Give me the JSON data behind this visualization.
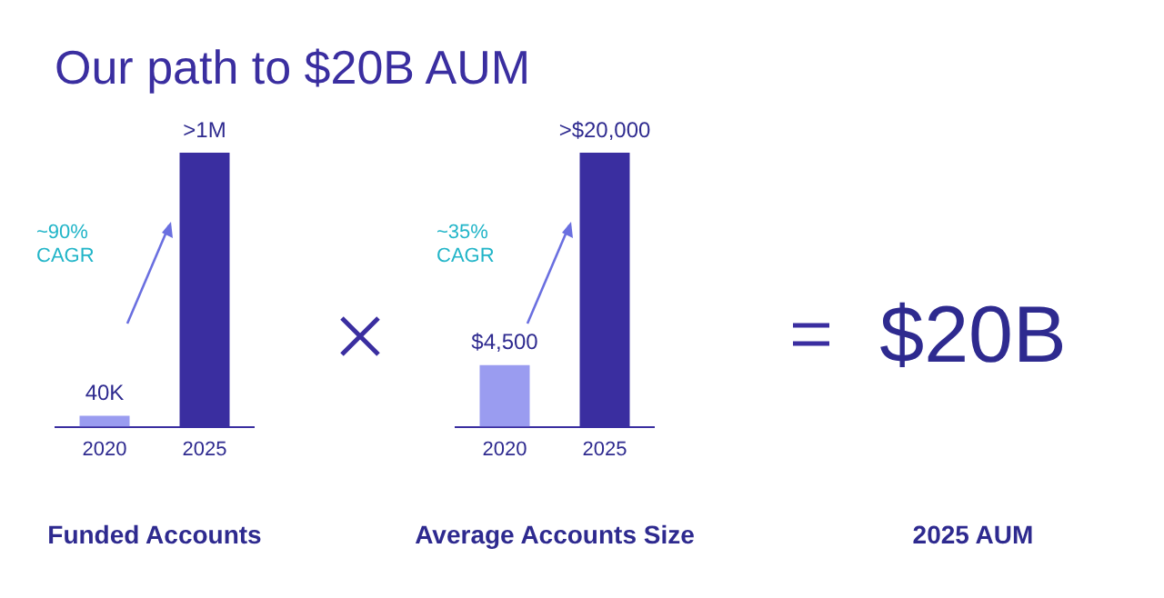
{
  "chart_data": [
    {
      "type": "bar",
      "title": "Our path to $20B AUM",
      "xlabel": "Funded Accounts",
      "categories": [
        "2020",
        "2025"
      ],
      "values": [
        40000,
        1000000
      ],
      "colors": [
        "#9a9cf0",
        "#3a2ea0"
      ],
      "value_labels": [
        "40K",
        ">1M"
      ],
      "annotations": [
        "~90% CAGR"
      ],
      "grid": false,
      "legend": false
    },
    {
      "type": "bar",
      "xlabel": "Average Accounts Size",
      "categories": [
        "2020",
        "2025"
      ],
      "values": [
        4500,
        20000
      ],
      "colors": [
        "#9a9cf0",
        "#3a2ea0"
      ],
      "value_labels": [
        "$4,500",
        ">$20,000"
      ],
      "annotations": [
        "~35% CAGR"
      ],
      "grid": false,
      "legend": false
    },
    {
      "type": "other",
      "title": "$20B",
      "xlabel": "2025 AUM"
    }
  ]
}
